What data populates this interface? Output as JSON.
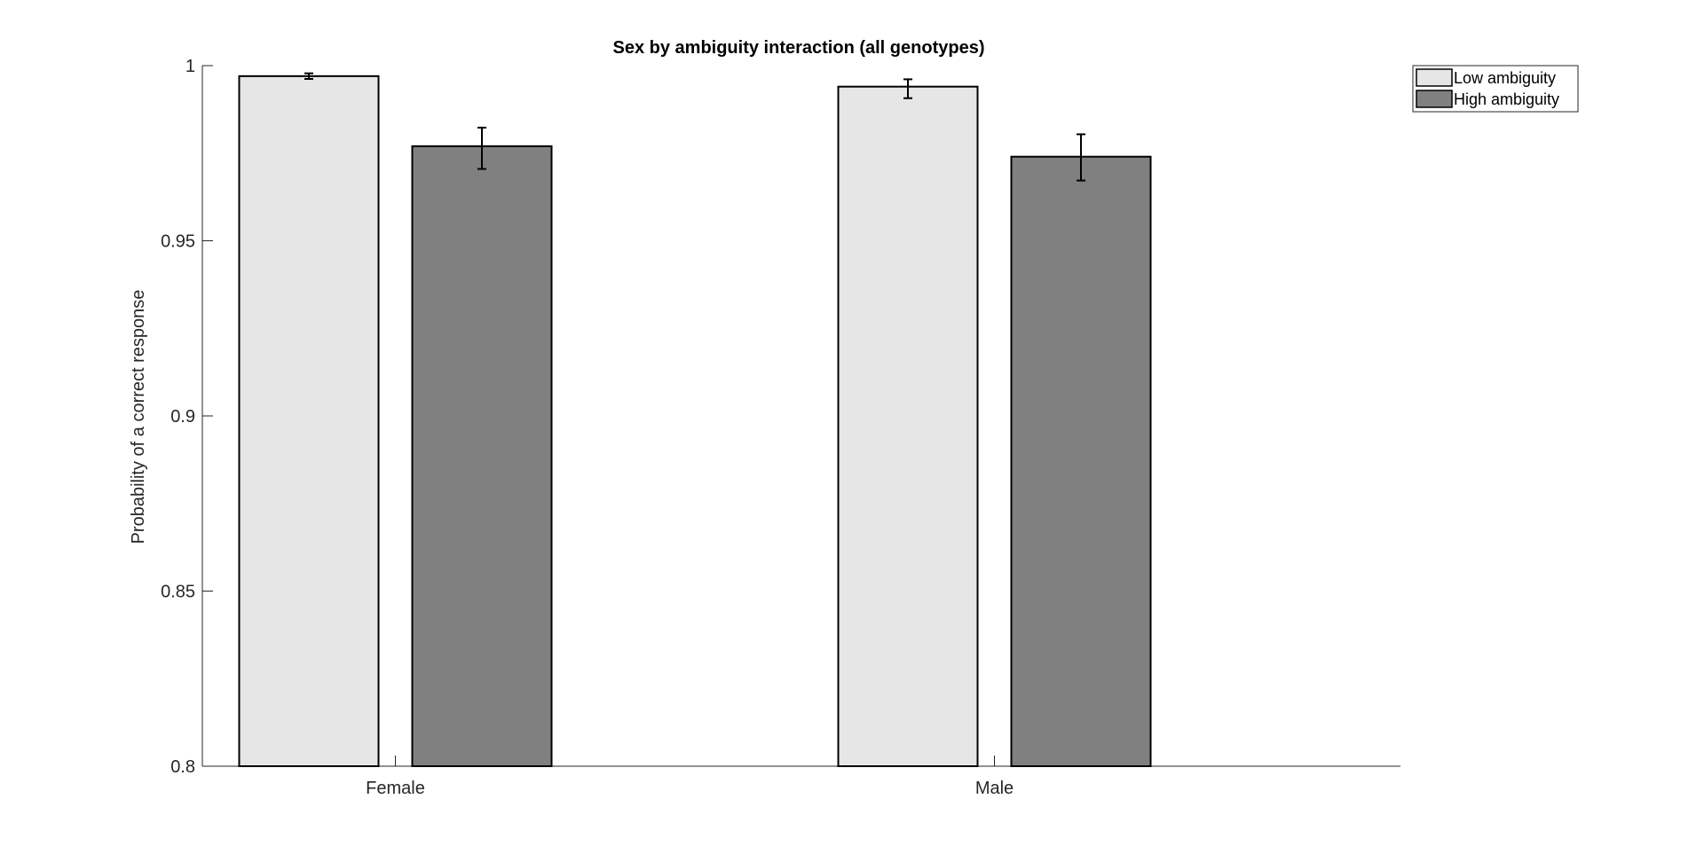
{
  "chart_data": {
    "type": "bar",
    "title": "Sex by ambiguity interaction (all genotypes)",
    "xlabel": "",
    "ylabel": "Probability of a correct response",
    "categories": [
      "Female",
      "Male"
    ],
    "ylim": [
      0.8,
      1.0
    ],
    "yticks": [
      0.8,
      0.85,
      0.9,
      0.95,
      1
    ],
    "ytick_labels": [
      "0.8",
      "0.85",
      "0.9",
      "0.95",
      "1"
    ],
    "grid": false,
    "legend_position": "top-right",
    "series": [
      {
        "name": "Low ambiguity",
        "color": "#e6e6e6",
        "values": [
          0.997,
          0.994
        ],
        "err_low": [
          0.9962,
          0.9907
        ],
        "err_high": [
          0.9978,
          0.9961
        ]
      },
      {
        "name": "High ambiguity",
        "color": "#808080",
        "values": [
          0.977,
          0.974
        ],
        "err_low": [
          0.9705,
          0.9672
        ],
        "err_high": [
          0.9823,
          0.9804
        ]
      }
    ]
  }
}
